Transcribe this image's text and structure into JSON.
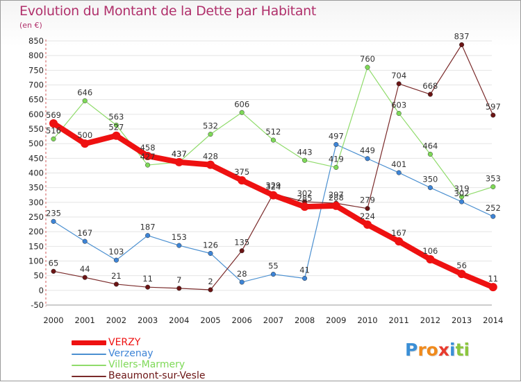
{
  "title": "Evolution du Montant de la Dette par Habitant",
  "unit": "(en €)",
  "brand": {
    "letters": [
      {
        "char": "P",
        "color": "#3a8fd6"
      },
      {
        "char": "r",
        "color": "#f08a1c"
      },
      {
        "char": "o",
        "color": "#f08a1c"
      },
      {
        "char": "x",
        "color": "#e83b2e"
      },
      {
        "char": "i",
        "color": "#3a8fd6"
      },
      {
        "char": "t",
        "color": "#8cc63f"
      },
      {
        "char": "i",
        "color": "#8cc63f"
      }
    ]
  },
  "chart_data": {
    "type": "line",
    "x": [
      "2000",
      "2001",
      "2002",
      "2003",
      "2004",
      "2005",
      "2006",
      "2007",
      "2008",
      "2009",
      "2010",
      "2011",
      "2012",
      "2013",
      "2014"
    ],
    "ylim": [
      -50,
      850
    ],
    "yticks": [
      -50,
      0,
      50,
      100,
      150,
      200,
      250,
      300,
      350,
      400,
      450,
      500,
      550,
      600,
      650,
      700,
      750,
      800,
      850
    ],
    "grid": true,
    "legend_position": "bottom-left",
    "series": [
      {
        "name": "VERZY",
        "color": "#ee1111",
        "emphasis": true,
        "values": [
          569,
          500,
          527,
          458,
          437,
          428,
          375,
          324,
          285,
          288,
          224,
          167,
          106,
          56,
          11
        ],
        "labels": [
          "569",
          "500",
          "527",
          "458",
          "437",
          "428",
          "375",
          "324",
          "285",
          "288",
          "224",
          "167",
          "106",
          "56",
          "11"
        ]
      },
      {
        "name": "Verzenay",
        "color": "#4a8fd0",
        "dot_color": "#3d84d6",
        "values": [
          235,
          167,
          103,
          187,
          153,
          126,
          28,
          55,
          41,
          497,
          449,
          401,
          350,
          302,
          252
        ],
        "labels": [
          "235",
          "167",
          "103",
          "187",
          "153",
          "126",
          "28",
          "55",
          "41",
          "497",
          "449",
          "401",
          "350",
          "302",
          "252"
        ]
      },
      {
        "name": "Villers-Marmery",
        "color": "#8fdb6a",
        "dot_color": "#7ed957",
        "values": [
          516,
          646,
          563,
          427,
          437,
          532,
          606,
          512,
          443,
          419,
          760,
          603,
          464,
          319,
          353
        ],
        "labels": [
          "516",
          "646",
          "563",
          "427",
          "437",
          "532",
          "606",
          "512",
          "443",
          "419",
          "760",
          "603",
          "464",
          "319",
          "353"
        ]
      },
      {
        "name": "Beaumont-sur-Vesle",
        "color": "#7a2a2a",
        "dot_color": "#6b1414",
        "values": [
          65,
          44,
          21,
          11,
          7,
          2,
          135,
          329,
          302,
          297,
          279,
          704,
          668,
          837,
          597
        ],
        "labels": [
          "65",
          "44",
          "21",
          "11",
          "7",
          "2",
          "135",
          "329",
          "302",
          "297",
          "279",
          "704",
          "668",
          "837",
          "597"
        ]
      }
    ]
  }
}
